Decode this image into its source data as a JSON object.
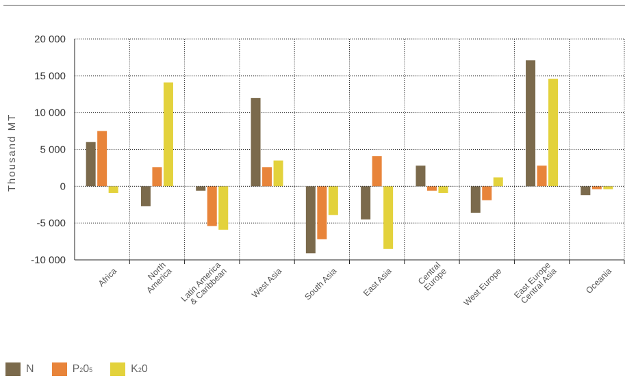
{
  "chart_data": {
    "type": "bar",
    "title": "",
    "xlabel": "",
    "ylabel": "Thousand MT",
    "ylim": [
      -10000,
      20000
    ],
    "yticks": [
      20000,
      15000,
      10000,
      5000,
      0,
      -5000,
      -10000
    ],
    "ytick_labels": [
      "20 000",
      "15 000",
      "10 000",
      "5 000",
      "0",
      "-5 000",
      "-10 000"
    ],
    "grid": true,
    "legend_position": "bottom-left",
    "categories": [
      [
        "Africa"
      ],
      [
        "North",
        "America"
      ],
      [
        "Latin America",
        "& Caribbean"
      ],
      [
        "West Asia"
      ],
      [
        "South Asia"
      ],
      [
        "East Asia"
      ],
      [
        "Central",
        "Europe"
      ],
      [
        "West Europe"
      ],
      [
        "East Europe",
        "Central Asia"
      ],
      [
        "Oceania"
      ]
    ],
    "series": [
      {
        "name": "N",
        "sub1": "",
        "mid": "",
        "sub2": "",
        "color": "#7b6a4c",
        "values": [
          6000,
          -2700,
          -600,
          12000,
          -9100,
          -4500,
          2800,
          -3600,
          17100,
          -1200
        ]
      },
      {
        "name": "P",
        "sub1": "2",
        "mid": "0",
        "sub2": "5",
        "color": "#e8843a",
        "values": [
          7500,
          2600,
          -5400,
          2600,
          -7200,
          4100,
          -600,
          -1900,
          2800,
          -400
        ]
      },
      {
        "name": "K",
        "sub1": "2",
        "mid": "0",
        "sub2": "",
        "color": "#e3d23c",
        "values": [
          -900,
          14100,
          -5900,
          3500,
          -3900,
          -8500,
          -900,
          1200,
          14600,
          -400
        ]
      }
    ]
  }
}
